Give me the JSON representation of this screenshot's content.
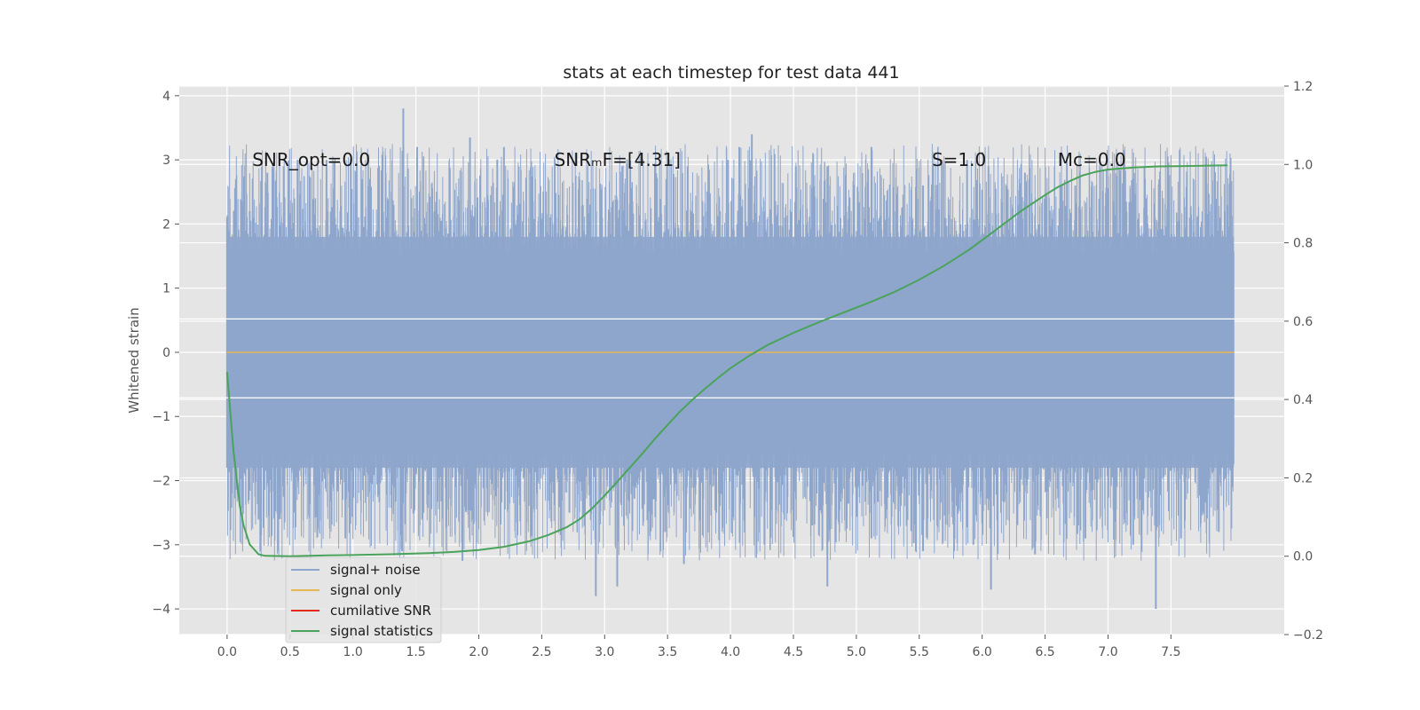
{
  "chart_data": {
    "type": "line",
    "title": "stats at each timestep for test data 441",
    "ylabel": "Whitened strain",
    "xlabel": "",
    "xlim": [
      -0.38,
      8.4
    ],
    "ylim": [
      -4.4,
      4.15
    ],
    "y2lim": [
      -0.2,
      1.2
    ],
    "grid": true,
    "legend_position": "lower-left",
    "x_ticks": [
      "0.0",
      "0.5",
      "1.0",
      "1.5",
      "2.0",
      "2.5",
      "3.0",
      "3.5",
      "4.0",
      "4.5",
      "5.0",
      "5.5",
      "6.0",
      "6.5",
      "7.0",
      "7.5"
    ],
    "x_tick_values": [
      0.0,
      0.5,
      1.0,
      1.5,
      2.0,
      2.5,
      3.0,
      3.5,
      4.0,
      4.5,
      5.0,
      5.5,
      6.0,
      6.5,
      7.0,
      7.5
    ],
    "y_ticks": [
      "4",
      "3",
      "2",
      "1",
      "0",
      "−1",
      "−2",
      "−3",
      "−4"
    ],
    "y_tick_values": [
      4,
      3,
      2,
      1,
      0,
      -1,
      -2,
      -3,
      -4
    ],
    "y2_ticks": [
      "1.2",
      "1.0",
      "0.8",
      "0.6",
      "0.4",
      "0.2",
      "0.0",
      "−0.2"
    ],
    "y2_tick_values": [
      1.2,
      1.0,
      0.8,
      0.6,
      0.4,
      0.2,
      0.0,
      -0.2
    ],
    "annotations": [
      {
        "text": "SNR_opt=0.0",
        "x": 0.2,
        "y": 3.0
      },
      {
        "text": "SNRₘF=[4.31]",
        "x": 2.6,
        "y": 3.0
      },
      {
        "text": "S=1.0",
        "x": 5.6,
        "y": 3.0
      },
      {
        "text": "Mᴄ=0.0",
        "x": 6.6,
        "y": 3.0
      }
    ],
    "series": [
      {
        "name": "signal+ noise",
        "color": "#8fa6cc",
        "axis": "left",
        "style": "dense-noise",
        "x_range": [
          0.0,
          8.0
        ],
        "band_upper": 1.8,
        "band_lower": -1.8,
        "peaks": [
          [
            0.0,
            2.1
          ],
          [
            0.07,
            2.7
          ],
          [
            0.18,
            2.2
          ],
          [
            0.32,
            2.8
          ],
          [
            0.45,
            2.9
          ],
          [
            0.56,
            3.0
          ],
          [
            0.79,
            3.0
          ],
          [
            1.07,
            2.7
          ],
          [
            1.4,
            3.8
          ],
          [
            1.51,
            3.2
          ],
          [
            1.93,
            3.35
          ],
          [
            2.2,
            3.2
          ],
          [
            2.86,
            2.4
          ],
          [
            3.14,
            2.9
          ],
          [
            3.49,
            2.7
          ],
          [
            3.66,
            2.9
          ],
          [
            3.98,
            3.0
          ],
          [
            4.07,
            3.2
          ],
          [
            4.17,
            3.4
          ],
          [
            4.52,
            2.9
          ],
          [
            4.77,
            2.9
          ],
          [
            5.12,
            3.2
          ],
          [
            5.53,
            2.6
          ],
          [
            5.68,
            3.0
          ],
          [
            5.88,
            3.0
          ],
          [
            6.05,
            2.9
          ],
          [
            6.34,
            2.8
          ],
          [
            6.74,
            2.6
          ],
          [
            7.3,
            2.4
          ],
          [
            7.78,
            3.05
          ],
          [
            7.95,
            2.3
          ]
        ],
        "troughs": [
          [
            0.0,
            -1.8
          ],
          [
            0.1,
            -2.3
          ],
          [
            0.25,
            -2.6
          ],
          [
            0.42,
            -2.6
          ],
          [
            0.94,
            -2.9
          ],
          [
            1.39,
            -3.1
          ],
          [
            1.87,
            -3.25
          ],
          [
            2.72,
            -2.5
          ],
          [
            2.93,
            -3.8
          ],
          [
            3.1,
            -3.65
          ],
          [
            3.48,
            -2.8
          ],
          [
            3.63,
            -3.3
          ],
          [
            3.94,
            -2.7
          ],
          [
            4.27,
            -3.0
          ],
          [
            4.65,
            -2.7
          ],
          [
            4.77,
            -3.65
          ],
          [
            5.12,
            -2.9
          ],
          [
            5.53,
            -3.1
          ],
          [
            5.93,
            -3.0
          ],
          [
            6.07,
            -3.7
          ],
          [
            6.42,
            -3.15
          ],
          [
            6.82,
            -2.9
          ],
          [
            7.2,
            -3.0
          ],
          [
            7.38,
            -4.0
          ],
          [
            7.58,
            -2.9
          ],
          [
            7.88,
            -2.8
          ],
          [
            7.99,
            -2.1
          ]
        ]
      },
      {
        "name": "signal only",
        "color": "#e8b653",
        "axis": "left",
        "x": [
          0.0,
          8.0
        ],
        "y": [
          0.0,
          0.0
        ]
      },
      {
        "name": "cumilative SNR",
        "color": "#e2291c",
        "axis": "left",
        "x": [],
        "y": []
      },
      {
        "name": "signal statistics",
        "color": "#4aa35a",
        "axis": "right",
        "x": [
          0.0,
          0.05,
          0.1,
          0.13,
          0.18,
          0.25,
          0.3,
          0.5,
          0.8,
          1.0,
          1.3,
          1.6,
          1.8,
          2.0,
          2.2,
          2.4,
          2.55,
          2.7,
          2.8,
          2.9,
          3.0,
          3.1,
          3.2,
          3.3,
          3.4,
          3.5,
          3.6,
          3.7,
          3.8,
          3.9,
          4.0,
          4.15,
          4.3,
          4.5,
          4.7,
          4.9,
          5.1,
          5.3,
          5.5,
          5.7,
          5.9,
          6.1,
          6.3,
          6.5,
          6.6,
          6.7,
          6.8,
          6.9,
          7.0,
          7.2,
          7.4,
          7.6,
          7.8,
          7.95
        ],
        "y": [
          0.47,
          0.27,
          0.13,
          0.08,
          0.03,
          0.005,
          0.001,
          0.0,
          0.002,
          0.003,
          0.005,
          0.008,
          0.011,
          0.016,
          0.024,
          0.038,
          0.054,
          0.074,
          0.094,
          0.122,
          0.155,
          0.19,
          0.226,
          0.262,
          0.3,
          0.335,
          0.37,
          0.4,
          0.428,
          0.455,
          0.48,
          0.512,
          0.54,
          0.57,
          0.597,
          0.622,
          0.647,
          0.674,
          0.706,
          0.742,
          0.783,
          0.831,
          0.879,
          0.922,
          0.942,
          0.958,
          0.972,
          0.981,
          0.987,
          0.992,
          0.995,
          0.996,
          0.997,
          0.998
        ]
      }
    ]
  }
}
